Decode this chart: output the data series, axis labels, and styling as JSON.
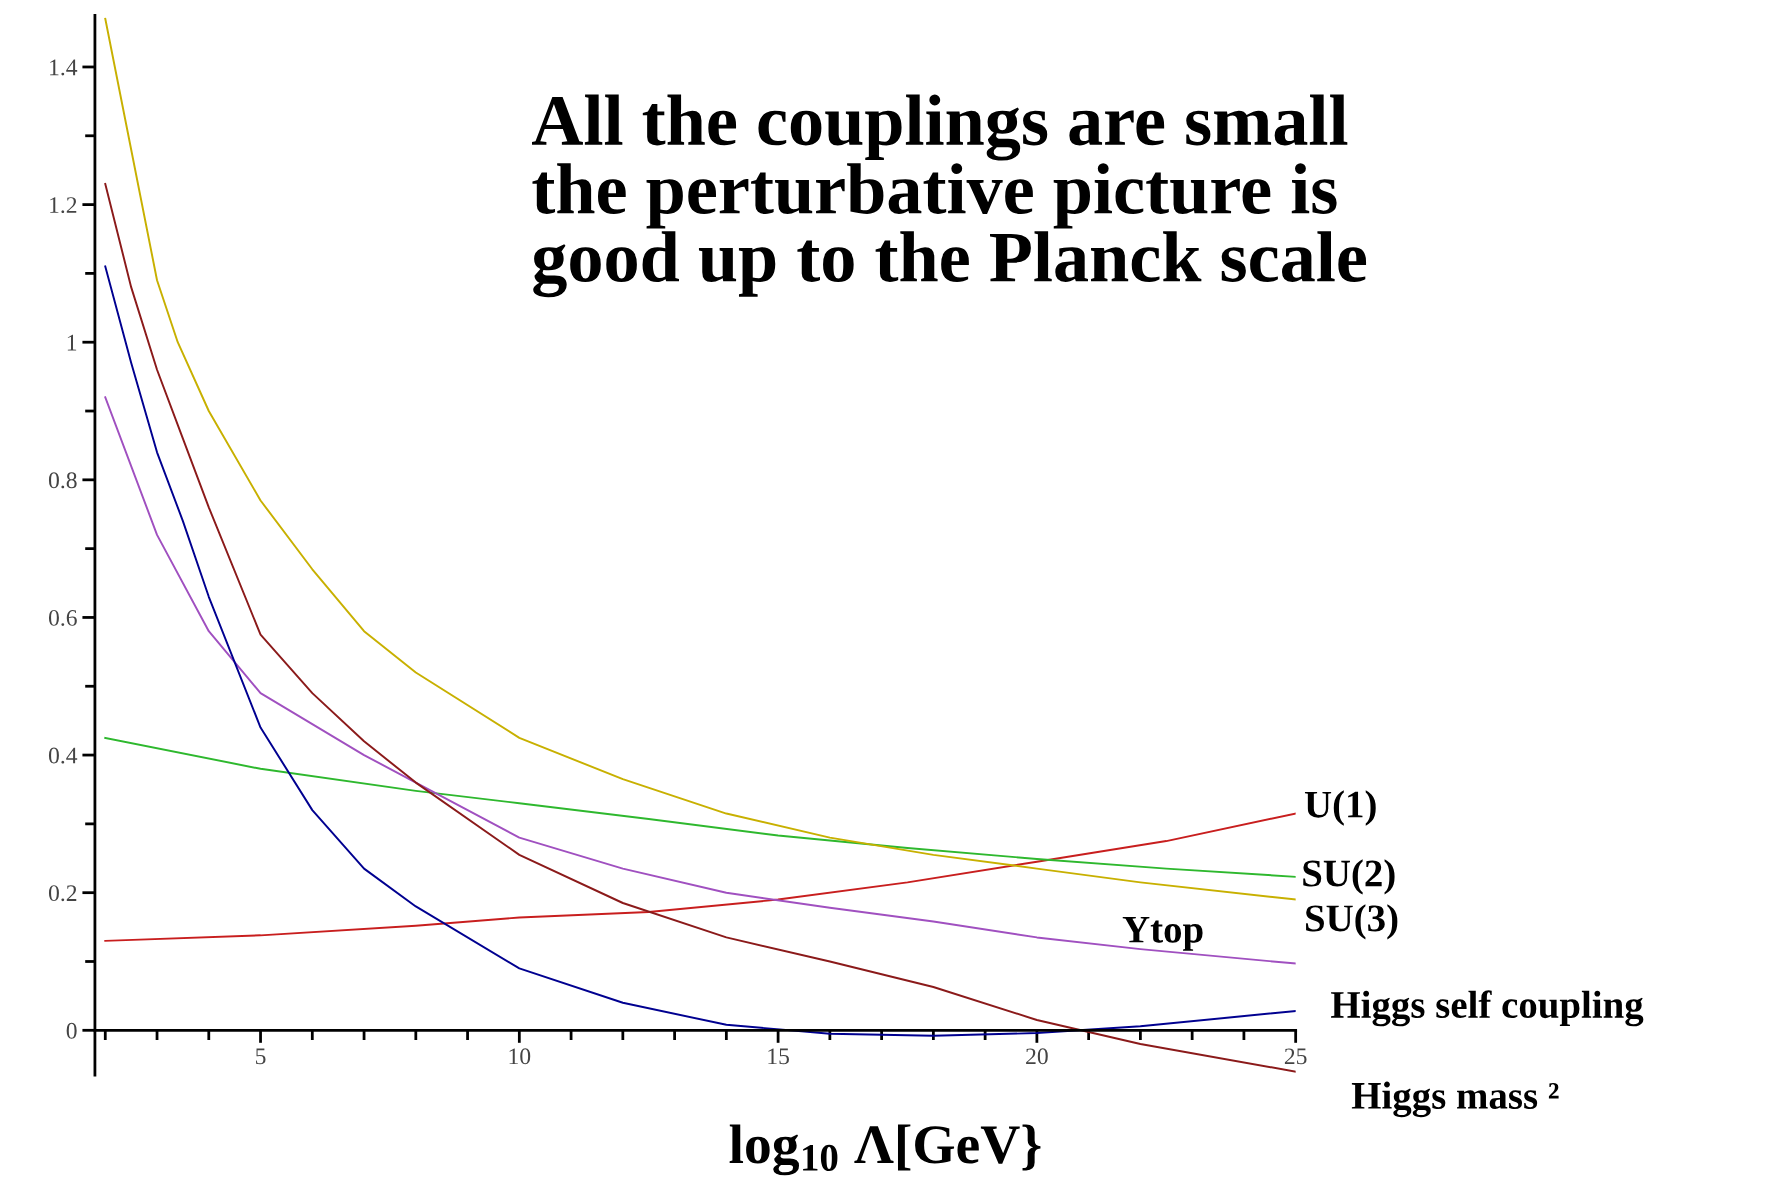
{
  "chart_data": {
    "type": "line",
    "title": "All the couplings are small\nthe perturbative picture is\ngood up to the Planck scale",
    "xlabel": "log$_{10}$ Λ[GeV}",
    "xlim": [
      1.8,
      25
    ],
    "xticks": [
      5,
      10,
      15,
      20,
      25
    ],
    "ylim": [
      -0.065,
      1.475
    ],
    "yticks": [
      0,
      0.2,
      0.4,
      0.6,
      0.8,
      1,
      1.2,
      1.4
    ],
    "grid": false,
    "legend": false,
    "series": [
      {
        "name": "U(1)",
        "color": "#c81e1e",
        "x": [
          2,
          5,
          8,
          10,
          12.5,
          15,
          17.5,
          20,
          22.5,
          25
        ],
        "values": [
          0.13,
          0.138,
          0.152,
          0.164,
          0.172,
          0.19,
          0.215,
          0.245,
          0.275,
          0.315
        ]
      },
      {
        "name": "SU(2)",
        "color": "#2eb82e",
        "x": [
          2,
          5,
          8,
          10,
          12.5,
          15,
          17.5,
          20,
          22.5,
          25
        ],
        "values": [
          0.425,
          0.38,
          0.348,
          0.33,
          0.307,
          0.283,
          0.265,
          0.249,
          0.235,
          0.223
        ]
      },
      {
        "name": "SU(3)",
        "color": "#c8b000",
        "x": [
          2,
          2.5,
          3,
          3.4,
          4,
          5,
          6,
          7,
          8,
          10,
          12,
          14,
          16,
          18,
          20,
          22,
          25
        ],
        "values": [
          1.47,
          1.28,
          1.09,
          1.0,
          0.9,
          0.77,
          0.67,
          0.58,
          0.52,
          0.425,
          0.365,
          0.315,
          0.28,
          0.255,
          0.235,
          0.215,
          0.19
        ]
      },
      {
        "name": "Ytop",
        "color": "#a050c0",
        "x": [
          2,
          3,
          4,
          5,
          6,
          7,
          8,
          10,
          12,
          14,
          16,
          18,
          20,
          22,
          25
        ],
        "values": [
          0.92,
          0.72,
          0.58,
          0.49,
          0.445,
          0.4,
          0.36,
          0.28,
          0.235,
          0.2,
          0.178,
          0.158,
          0.135,
          0.118,
          0.097
        ]
      },
      {
        "name": "Higgs self coupling",
        "color": "#000090",
        "x": [
          2,
          2.5,
          3,
          3.5,
          4,
          5,
          6,
          7,
          8,
          10,
          12,
          14,
          16,
          18,
          20,
          22,
          25
        ],
        "values": [
          1.11,
          0.97,
          0.84,
          0.74,
          0.63,
          0.44,
          0.32,
          0.235,
          0.18,
          0.09,
          0.04,
          0.008,
          -0.005,
          -0.008,
          -0.004,
          0.006,
          0.028
        ]
      },
      {
        "name": "Higgs mass ²",
        "color": "#8b1a1a",
        "x": [
          2,
          2.5,
          3,
          3.5,
          4,
          5,
          6,
          7,
          8,
          10,
          12,
          14,
          16,
          18,
          20,
          22,
          25
        ],
        "values": [
          1.23,
          1.08,
          0.96,
          0.86,
          0.76,
          0.575,
          0.49,
          0.42,
          0.36,
          0.255,
          0.185,
          0.135,
          0.1,
          0.063,
          0.015,
          -0.02,
          -0.06
        ]
      }
    ]
  }
}
